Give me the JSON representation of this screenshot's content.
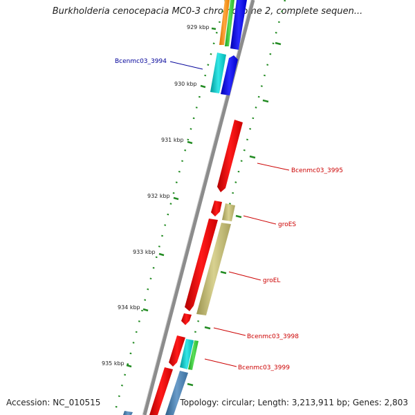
{
  "title": "Burkholderia cenocepacia MC0-3 chromosome 2, complete sequen...",
  "accession": "Accession: NC_010515",
  "topology": "Topology: circular; Length: 3,213,911 bp; Genes: 2,803",
  "colors": {
    "backbone": "#8c8c8c",
    "red_gene": "#ff0000",
    "khaki_gene": "#bdb76b",
    "blue_gene": "#0000ff",
    "cyan_gene": "#00cccc",
    "orange_gene": "#ff8c00",
    "green_gene": "#33cc33",
    "steel_gene": "#4682b4",
    "tick": "#228b22",
    "label_red": "#cc0000",
    "label_blue": "#000099"
  },
  "ticks": [
    {
      "label": "929 kbp"
    },
    {
      "label": "930 kbp"
    },
    {
      "label": "931 kbp"
    },
    {
      "label": "932 kbp"
    },
    {
      "label": "933 kbp"
    },
    {
      "label": "934 kbp"
    },
    {
      "label": "935 kbp"
    }
  ],
  "gene_labels": [
    {
      "text": "Bcenmc03_3994"
    },
    {
      "text": "Bcenmc03_3995"
    },
    {
      "text": "groES"
    },
    {
      "text": "groEL"
    },
    {
      "text": "Bcenmc03_3998"
    },
    {
      "text": "Bcenmc03_3999"
    }
  ]
}
